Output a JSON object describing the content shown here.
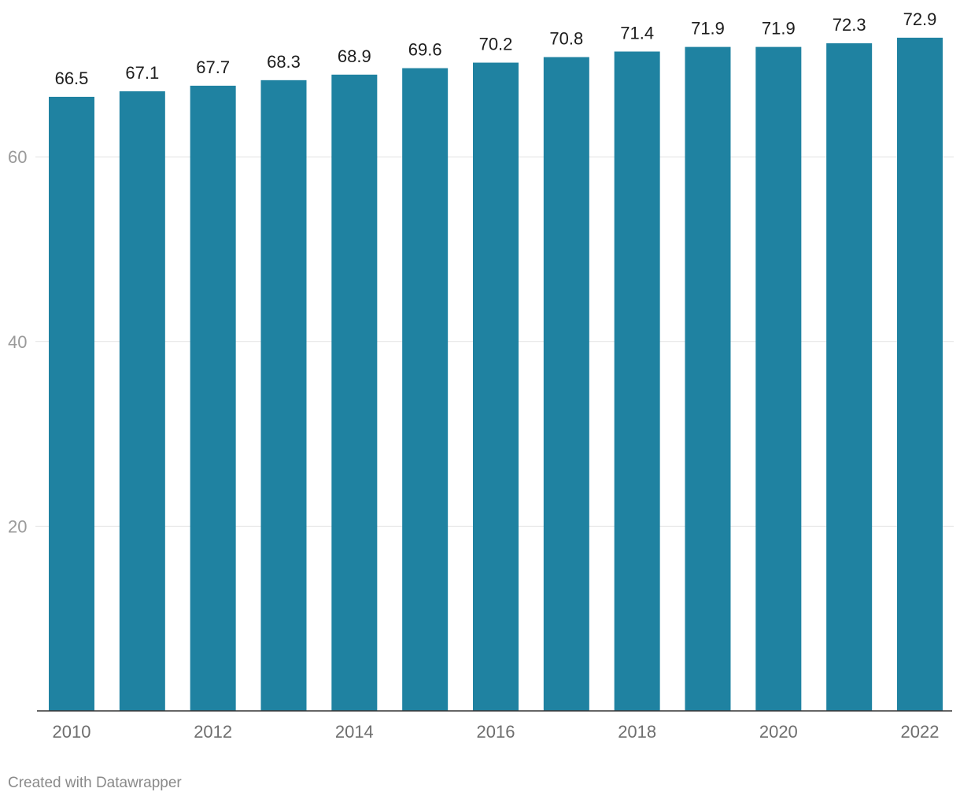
{
  "chart_data": {
    "type": "bar",
    "categories": [
      "2010",
      "2011",
      "2012",
      "2013",
      "2014",
      "2015",
      "2016",
      "2017",
      "2018",
      "2019",
      "2020",
      "2021",
      "2022"
    ],
    "values": [
      66.5,
      67.1,
      67.7,
      68.3,
      68.9,
      69.6,
      70.2,
      70.8,
      71.4,
      71.9,
      71.9,
      72.3,
      72.9
    ],
    "data_labels": [
      "66.5",
      "67.1",
      "67.7",
      "68.3",
      "68.9",
      "69.6",
      "70.2",
      "70.8",
      "71.4",
      "71.9",
      "71.9",
      "72.3",
      "72.9"
    ],
    "x_tick_labels": [
      "2010",
      "2012",
      "2014",
      "2016",
      "2018",
      "2020",
      "2022"
    ],
    "y_ticks": [
      20,
      40,
      60
    ],
    "ylim": [
      0,
      78
    ],
    "grid": true,
    "bar_color": "#1f82a1",
    "title": "",
    "xlabel": "",
    "ylabel": ""
  },
  "footer": {
    "credit": "Created with Datawrapper"
  }
}
